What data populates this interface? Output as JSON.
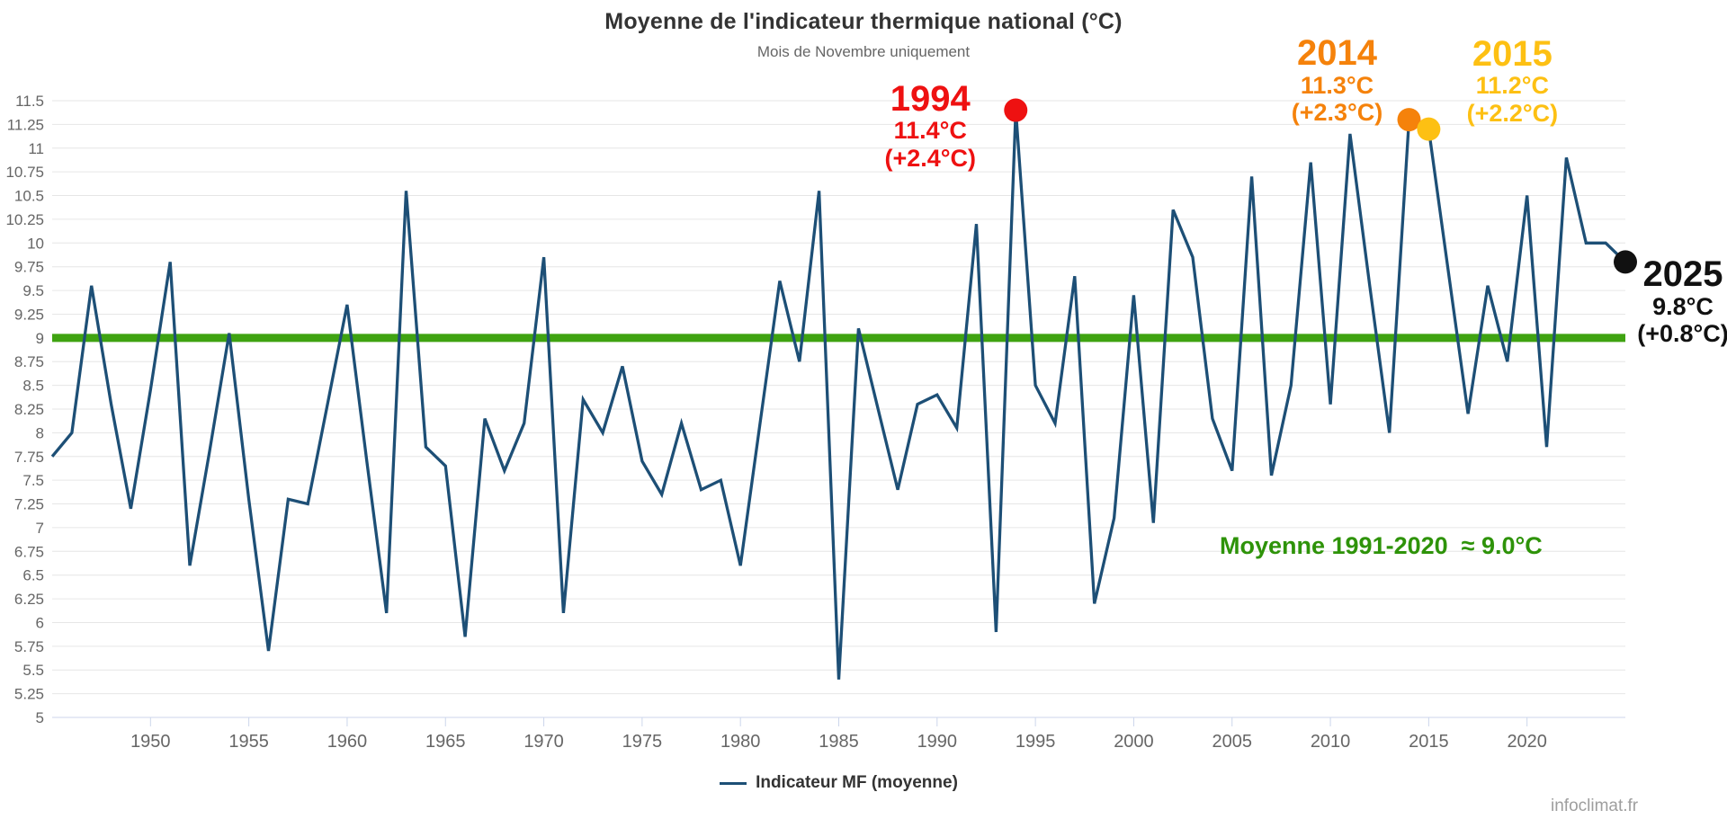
{
  "watermark": "infoclimat.fr",
  "chart_data": {
    "type": "line",
    "title": "Moyenne de l'indicateur thermique national (°C)",
    "subtitle": "Mois de Novembre uniquement",
    "grid": true,
    "ylim": [
      5,
      11.5
    ],
    "ytick_step": 0.25,
    "xticks": [
      1950,
      1955,
      1960,
      1965,
      1970,
      1975,
      1980,
      1985,
      1990,
      1995,
      2000,
      2005,
      2010,
      2015,
      2020
    ],
    "years": [
      1945,
      1946,
      1947,
      1948,
      1949,
      1950,
      1951,
      1952,
      1953,
      1954,
      1955,
      1956,
      1957,
      1958,
      1959,
      1960,
      1961,
      1962,
      1963,
      1964,
      1965,
      1966,
      1967,
      1968,
      1969,
      1970,
      1971,
      1972,
      1973,
      1974,
      1975,
      1976,
      1977,
      1978,
      1979,
      1980,
      1981,
      1982,
      1983,
      1984,
      1985,
      1986,
      1987,
      1988,
      1989,
      1990,
      1991,
      1992,
      1993,
      1994,
      1995,
      1996,
      1997,
      1998,
      1999,
      2000,
      2001,
      2002,
      2003,
      2004,
      2005,
      2006,
      2007,
      2008,
      2009,
      2010,
      2011,
      2012,
      2013,
      2014,
      2015,
      2016,
      2017,
      2018,
      2019,
      2020,
      2021,
      2022,
      2023,
      2024,
      2025
    ],
    "series": [
      {
        "name": "Indicateur MF (moyenne)",
        "color": "#1d4f76",
        "values": [
          7.75,
          8.0,
          9.55,
          8.3,
          7.2,
          8.45,
          9.8,
          6.6,
          7.8,
          9.05,
          7.3,
          5.7,
          7.3,
          7.25,
          8.3,
          9.35,
          7.7,
          6.1,
          10.55,
          7.85,
          7.65,
          5.85,
          8.15,
          7.6,
          8.1,
          9.85,
          6.1,
          8.35,
          8.0,
          8.7,
          7.7,
          7.35,
          8.1,
          7.4,
          7.5,
          6.6,
          8.1,
          9.6,
          8.75,
          10.55,
          5.4,
          9.1,
          8.25,
          7.4,
          8.3,
          8.4,
          8.05,
          10.2,
          5.9,
          11.4,
          8.5,
          8.1,
          9.65,
          6.2,
          7.1,
          9.45,
          7.05,
          10.35,
          9.85,
          8.15,
          7.6,
          10.7,
          7.55,
          8.5,
          10.85,
          8.3,
          11.15,
          9.55,
          8.0,
          11.3,
          11.2,
          9.7,
          8.2,
          9.55,
          8.75,
          10.5,
          7.85,
          10.9,
          10.0,
          10.0,
          9.8
        ]
      }
    ],
    "mean_line": {
      "value": 9.0,
      "color": "#3fa311",
      "label": "Moyenne 1991-2020  ≈ 9.0°C",
      "label_color": "#2e9309"
    },
    "legend": {
      "position": "bottom"
    },
    "annotations": [
      {
        "id": "1994",
        "year": 1994,
        "value": 11.4,
        "color": "#ee1111",
        "title": "1994",
        "temp": "11.4°C",
        "anomaly": "(+2.4°C)"
      },
      {
        "id": "2014",
        "year": 2014,
        "value": 11.3,
        "color": "#f5820b",
        "title": "2014",
        "temp": "11.3°C",
        "anomaly": "(+2.3°C)"
      },
      {
        "id": "2015",
        "year": 2015,
        "value": 11.2,
        "color": "#fdc013",
        "title": "2015",
        "temp": "11.2°C",
        "anomaly": "(+2.2°C)"
      },
      {
        "id": "2025",
        "year": 2025,
        "value": 9.8,
        "color": "#111111",
        "title": "2025",
        "temp": "9.8°C",
        "anomaly": "(+0.8°C)"
      }
    ],
    "axis_colors": {
      "grid": "#e6e6e6",
      "axis_line": "#ccd6eb",
      "labels": "#666666"
    }
  }
}
